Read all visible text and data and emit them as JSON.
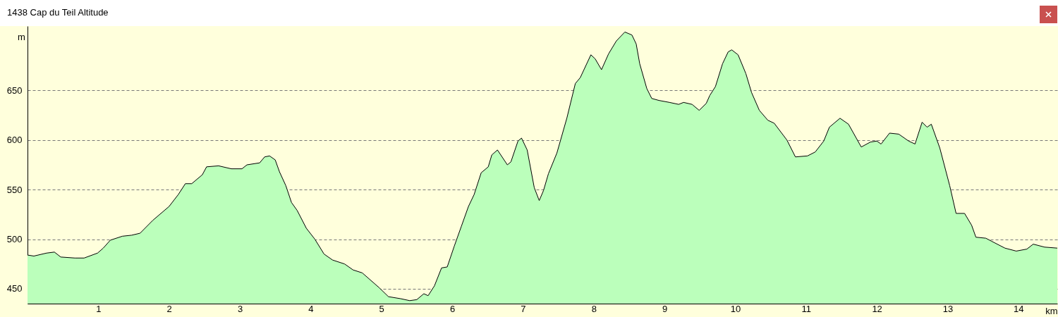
{
  "chart_data": {
    "type": "area",
    "title": "1438 Cap du Teil Altitude",
    "xlabel": "km",
    "ylabel": "m",
    "xlim": [
      0,
      14.55
    ],
    "xticks": [
      1,
      2,
      3,
      4,
      5,
      6,
      7,
      8,
      9,
      10,
      11,
      12,
      13,
      14
    ],
    "ylim": [
      435,
      715
    ],
    "yticks": [
      450,
      500,
      550,
      600,
      650
    ],
    "grid": "y",
    "series": [
      {
        "color": "#bbffbb",
        "x": [
          0,
          0.09,
          0.27,
          0.38,
          0.47,
          0.67,
          0.8,
          0.99,
          1.07,
          1.17,
          1.34,
          1.47,
          1.59,
          1.77,
          2.0,
          2.13,
          2.23,
          2.32,
          2.47,
          2.53,
          2.7,
          2.88,
          3.03,
          3.1,
          3.28,
          3.35,
          3.42,
          3.5,
          3.56,
          3.65,
          3.73,
          3.81,
          3.94,
          4.06,
          4.19,
          4.31,
          4.48,
          4.6,
          4.73,
          4.97,
          5.1,
          5.27,
          5.4,
          5.5,
          5.6,
          5.66,
          5.75,
          5.85,
          5.93,
          6.03,
          6.13,
          6.23,
          6.31,
          6.41,
          6.51,
          6.56,
          6.64,
          6.78,
          6.83,
          6.93,
          6.98,
          7.06,
          7.16,
          7.23,
          7.29,
          7.36,
          7.48,
          7.62,
          7.74,
          7.81,
          7.96,
          8.02,
          8.11,
          8.21,
          8.32,
          8.44,
          8.54,
          8.6,
          8.65,
          8.75,
          8.82,
          8.92,
          9.07,
          9.2,
          9.27,
          9.39,
          9.49,
          9.59,
          9.64,
          9.72,
          9.82,
          9.9,
          9.95,
          10.04,
          10.15,
          10.23,
          10.34,
          10.46,
          10.55,
          10.73,
          10.85,
          11.02,
          11.13,
          11.25,
          11.33,
          11.48,
          11.6,
          11.78,
          11.91,
          12.0,
          12.06,
          12.18,
          12.31,
          12.45,
          12.54,
          12.64,
          12.71,
          12.77,
          12.89,
          13.03,
          13.12,
          13.24,
          13.34,
          13.4,
          13.54,
          13.62,
          13.81,
          13.97,
          14.12,
          14.21,
          14.37,
          14.55
        ],
        "values": [
          484,
          483,
          486,
          487,
          482,
          481,
          481,
          486,
          491,
          499,
          503,
          504,
          506,
          519,
          533,
          545,
          556,
          556,
          565,
          573,
          574,
          571,
          571,
          575,
          577,
          583,
          584,
          580,
          568,
          554,
          537,
          529,
          511,
          500,
          485,
          479,
          475,
          469,
          466,
          451,
          442,
          440,
          438,
          439,
          445,
          443,
          453,
          471,
          472,
          493,
          513,
          533,
          545,
          567,
          573,
          585,
          590,
          575,
          578,
          599,
          602,
          590,
          552,
          539,
          549,
          566,
          587,
          622,
          657,
          663,
          686,
          682,
          671,
          687,
          700,
          709,
          706,
          697,
          677,
          652,
          642,
          640,
          638,
          636,
          638,
          636,
          630,
          637,
          645,
          654,
          677,
          689,
          691,
          686,
          667,
          648,
          630,
          620,
          617,
          600,
          583,
          584,
          588,
          599,
          613,
          622,
          616,
          593,
          598,
          599,
          596,
          607,
          606,
          599,
          596,
          618,
          613,
          616,
          592,
          554,
          526,
          526,
          514,
          502,
          501,
          498,
          491,
          488,
          490,
          495,
          492,
          491
        ]
      }
    ]
  }
}
